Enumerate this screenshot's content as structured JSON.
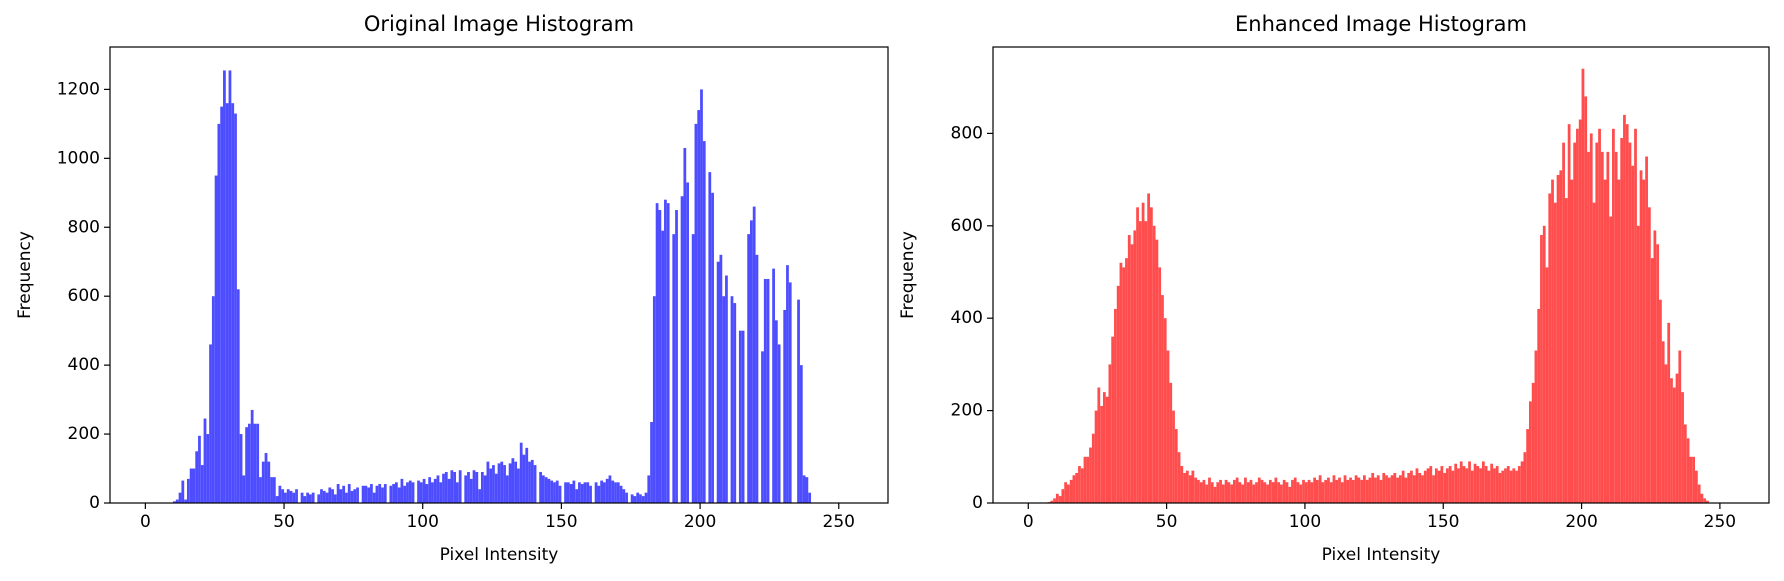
{
  "chart_data": [
    {
      "type": "histogram",
      "title": "Original Image Histogram",
      "xlabel": "Pixel Intensity",
      "ylabel": "Frequency",
      "color": "#4d4dff",
      "grid": false,
      "bins": [
        0,
        1,
        2,
        3,
        4,
        5,
        6,
        7,
        8,
        9,
        10,
        11,
        12,
        13,
        14,
        15,
        16,
        17,
        18,
        19,
        20,
        21,
        22,
        23,
        24,
        25,
        26,
        27,
        28,
        29,
        30,
        31,
        32,
        33,
        34,
        35,
        36,
        37,
        38,
        39,
        40,
        41,
        42,
        43,
        44,
        45,
        46,
        47,
        48,
        49,
        50,
        51,
        52,
        53,
        54,
        55,
        56,
        57,
        58,
        59,
        60,
        61,
        62,
        63,
        64,
        65,
        66,
        67,
        68,
        69,
        70,
        71,
        72,
        73,
        74,
        75,
        76,
        77,
        78,
        79,
        80,
        81,
        82,
        83,
        84,
        85,
        86,
        87,
        88,
        89,
        90,
        91,
        92,
        93,
        94,
        95,
        96,
        97,
        98,
        99,
        100,
        101,
        102,
        103,
        104,
        105,
        106,
        107,
        108,
        109,
        110,
        111,
        112,
        113,
        114,
        115,
        116,
        117,
        118,
        119,
        120,
        121,
        122,
        123,
        124,
        125,
        126,
        127,
        128,
        129,
        130,
        131,
        132,
        133,
        134,
        135,
        136,
        137,
        138,
        139,
        140,
        141,
        142,
        143,
        144,
        145,
        146,
        147,
        148,
        149,
        150,
        151,
        152,
        153,
        154,
        155,
        156,
        157,
        158,
        159,
        160,
        161,
        162,
        163,
        164,
        165,
        166,
        167,
        168,
        169,
        170,
        171,
        172,
        173,
        174,
        175,
        176,
        177,
        178,
        179,
        180,
        181,
        182,
        183,
        184,
        185,
        186,
        187,
        188,
        189,
        190,
        191,
        192,
        193,
        194,
        195,
        196,
        197,
        198,
        199,
        200,
        201,
        202,
        203,
        204,
        205,
        206,
        207,
        208,
        209,
        210,
        211,
        212,
        213,
        214,
        215,
        216,
        217,
        218,
        219,
        220,
        221,
        222,
        223,
        224,
        225,
        226,
        227,
        228,
        229,
        230,
        231,
        232,
        233,
        234,
        235,
        236,
        237,
        238,
        239,
        240,
        241,
        242,
        243,
        244,
        245,
        246,
        247,
        248,
        249,
        250,
        251,
        252,
        253,
        254,
        255,
        256
      ],
      "values": [
        0,
        0,
        0,
        0,
        0,
        0,
        0,
        0,
        0,
        0,
        5,
        10,
        30,
        65,
        10,
        70,
        100,
        100,
        150,
        195,
        110,
        245,
        200,
        460,
        600,
        950,
        1100,
        1150,
        1255,
        1160,
        1255,
        1160,
        1130,
        620,
        200,
        80,
        220,
        230,
        270,
        230,
        230,
        75,
        120,
        145,
        120,
        75,
        75,
        20,
        50,
        40,
        30,
        40,
        35,
        30,
        40,
        0,
        30,
        20,
        30,
        25,
        30,
        0,
        25,
        40,
        35,
        30,
        45,
        40,
        25,
        55,
        40,
        50,
        30,
        55,
        35,
        40,
        45,
        0,
        50,
        50,
        45,
        55,
        30,
        50,
        55,
        45,
        55,
        0,
        50,
        55,
        60,
        45,
        70,
        50,
        60,
        65,
        60,
        0,
        65,
        60,
        70,
        55,
        75,
        60,
        70,
        80,
        60,
        85,
        90,
        70,
        95,
        90,
        60,
        95,
        0,
        80,
        90,
        70,
        95,
        90,
        40,
        90,
        80,
        120,
        100,
        110,
        85,
        115,
        120,
        110,
        80,
        115,
        130,
        120,
        100,
        175,
        140,
        160,
        120,
        125,
        110,
        0,
        90,
        80,
        75,
        70,
        65,
        60,
        65,
        50,
        0,
        60,
        60,
        55,
        65,
        40,
        60,
        55,
        60,
        60,
        50,
        0,
        60,
        50,
        65,
        60,
        70,
        80,
        65,
        60,
        60,
        50,
        40,
        30,
        0,
        25,
        20,
        30,
        25,
        20,
        30,
        80,
        235,
        600,
        870,
        850,
        790,
        880,
        870,
        0,
        780,
        850,
        0,
        890,
        1030,
        930,
        0,
        780,
        1100,
        1140,
        1200,
        1050,
        0,
        960,
        900,
        0,
        700,
        720,
        600,
        660,
        0,
        600,
        580,
        0,
        500,
        500,
        0,
        780,
        820,
        860,
        720,
        0,
        440,
        650,
        650,
        0,
        680,
        530,
        460,
        0,
        560,
        690,
        640,
        0,
        0,
        590,
        400,
        80,
        75,
        30,
        0,
        0,
        0,
        0,
        0,
        0,
        0,
        0,
        0,
        0,
        0,
        0,
        0,
        0,
        0,
        0
      ],
      "xlim": [
        -12.75,
        267.75
      ],
      "xticks": [
        0,
        50,
        100,
        150,
        200,
        250
      ],
      "ylim": [
        0,
        1323
      ],
      "yticks": [
        0,
        200,
        400,
        600,
        800,
        1000,
        1200
      ]
    },
    {
      "type": "histogram",
      "title": "Enhanced Image Histogram",
      "xlabel": "Pixel Intensity",
      "ylabel": "Frequency",
      "color": "#ff4d4d",
      "grid": false,
      "bins": [
        0,
        1,
        2,
        3,
        4,
        5,
        6,
        7,
        8,
        9,
        10,
        11,
        12,
        13,
        14,
        15,
        16,
        17,
        18,
        19,
        20,
        21,
        22,
        23,
        24,
        25,
        26,
        27,
        28,
        29,
        30,
        31,
        32,
        33,
        34,
        35,
        36,
        37,
        38,
        39,
        40,
        41,
        42,
        43,
        44,
        45,
        46,
        47,
        48,
        49,
        50,
        51,
        52,
        53,
        54,
        55,
        56,
        57,
        58,
        59,
        60,
        61,
        62,
        63,
        64,
        65,
        66,
        67,
        68,
        69,
        70,
        71,
        72,
        73,
        74,
        75,
        76,
        77,
        78,
        79,
        80,
        81,
        82,
        83,
        84,
        85,
        86,
        87,
        88,
        89,
        90,
        91,
        92,
        93,
        94,
        95,
        96,
        97,
        98,
        99,
        100,
        101,
        102,
        103,
        104,
        105,
        106,
        107,
        108,
        109,
        110,
        111,
        112,
        113,
        114,
        115,
        116,
        117,
        118,
        119,
        120,
        121,
        122,
        123,
        124,
        125,
        126,
        127,
        128,
        129,
        130,
        131,
        132,
        133,
        134,
        135,
        136,
        137,
        138,
        139,
        140,
        141,
        142,
        143,
        144,
        145,
        146,
        147,
        148,
        149,
        150,
        151,
        152,
        153,
        154,
        155,
        156,
        157,
        158,
        159,
        160,
        161,
        162,
        163,
        164,
        165,
        166,
        167,
        168,
        169,
        170,
        171,
        172,
        173,
        174,
        175,
        176,
        177,
        178,
        179,
        180,
        181,
        182,
        183,
        184,
        185,
        186,
        187,
        188,
        189,
        190,
        191,
        192,
        193,
        194,
        195,
        196,
        197,
        198,
        199,
        200,
        201,
        202,
        203,
        204,
        205,
        206,
        207,
        208,
        209,
        210,
        211,
        212,
        213,
        214,
        215,
        216,
        217,
        218,
        219,
        220,
        221,
        222,
        223,
        224,
        225,
        226,
        227,
        228,
        229,
        230,
        231,
        232,
        233,
        234,
        235,
        236,
        237,
        238,
        239,
        240,
        241,
        242,
        243,
        244,
        245,
        246,
        247,
        248,
        249,
        250,
        251,
        252,
        253,
        254,
        255,
        256
      ],
      "values": [
        0,
        0,
        0,
        0,
        0,
        0,
        0,
        2,
        5,
        10,
        20,
        15,
        30,
        45,
        40,
        50,
        60,
        65,
        80,
        75,
        100,
        100,
        120,
        150,
        200,
        250,
        210,
        240,
        230,
        300,
        360,
        420,
        470,
        520,
        510,
        530,
        580,
        560,
        590,
        640,
        610,
        650,
        610,
        670,
        640,
        600,
        570,
        510,
        450,
        400,
        330,
        260,
        200,
        160,
        110,
        80,
        65,
        70,
        60,
        70,
        55,
        50,
        45,
        50,
        40,
        55,
        45,
        35,
        45,
        50,
        40,
        50,
        45,
        40,
        50,
        55,
        45,
        40,
        55,
        45,
        50,
        40,
        45,
        55,
        50,
        45,
        40,
        50,
        45,
        55,
        45,
        40,
        50,
        45,
        35,
        50,
        55,
        45,
        40,
        50,
        45,
        50,
        45,
        55,
        50,
        60,
        45,
        50,
        55,
        45,
        60,
        50,
        55,
        45,
        60,
        50,
        55,
        50,
        60,
        55,
        50,
        60,
        50,
        55,
        65,
        55,
        60,
        50,
        65,
        60,
        55,
        60,
        65,
        55,
        60,
        70,
        55,
        65,
        70,
        60,
        75,
        65,
        60,
        70,
        75,
        80,
        60,
        75,
        70,
        80,
        65,
        75,
        80,
        70,
        85,
        75,
        90,
        80,
        75,
        90,
        70,
        85,
        80,
        75,
        90,
        80,
        70,
        85,
        75,
        80,
        65,
        70,
        75,
        80,
        70,
        75,
        70,
        80,
        90,
        110,
        160,
        220,
        260,
        330,
        420,
        580,
        600,
        510,
        670,
        700,
        650,
        710,
        720,
        780,
        660,
        820,
        700,
        780,
        810,
        830,
        940,
        880,
        760,
        800,
        650,
        780,
        810,
        760,
        700,
        760,
        620,
        810,
        760,
        700,
        790,
        840,
        820,
        780,
        730,
        810,
        600,
        720,
        700,
        750,
        640,
        530,
        590,
        560,
        440,
        350,
        300,
        390,
        270,
        250,
        280,
        330,
        240,
        170,
        140,
        100,
        100,
        70,
        40,
        20,
        10,
        5,
        0,
        0,
        0,
        0,
        0,
        0,
        0,
        0,
        0,
        0
      ],
      "xlim": [
        -12.75,
        267.75
      ],
      "xticks": [
        0,
        50,
        100,
        150,
        200,
        250
      ],
      "ylim": [
        0,
        987
      ],
      "yticks": [
        0,
        200,
        400,
        600,
        800
      ]
    }
  ]
}
